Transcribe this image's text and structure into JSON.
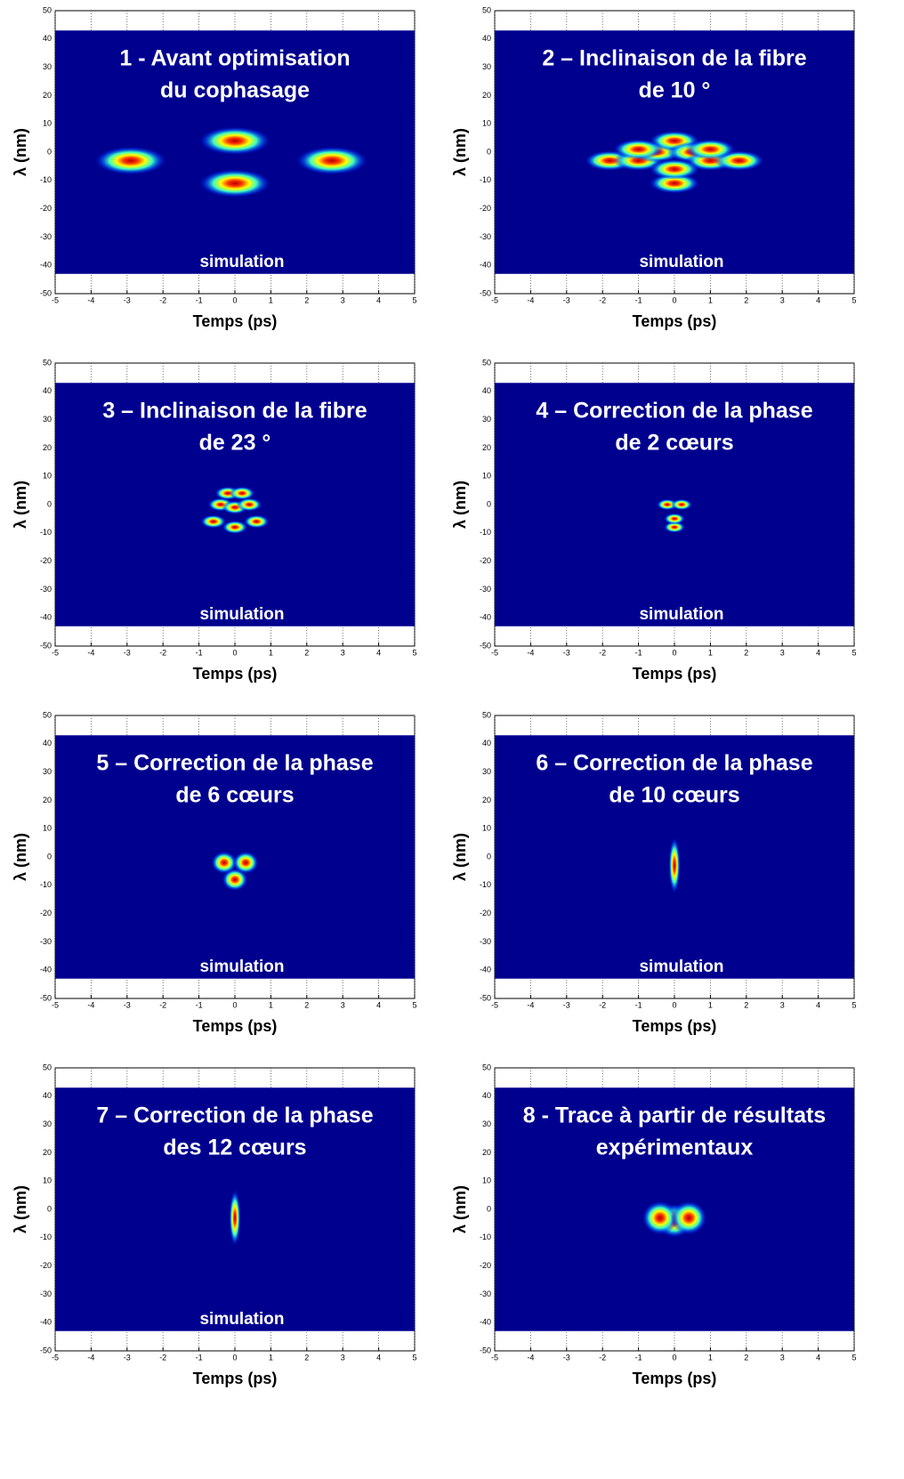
{
  "chart_data": [
    {
      "type": "heatmap",
      "title": [
        "1 - Avant optimisation",
        "du cophasage"
      ],
      "annotation": "simulation",
      "xlabel": "Temps (ps)",
      "ylabel": "λ (nm)",
      "xlim": [
        -5,
        5
      ],
      "ylim": [
        -50,
        50
      ],
      "xticks": [
        -5,
        -4,
        -3,
        -2,
        -1,
        0,
        1,
        2,
        3,
        4,
        5
      ],
      "yticks": [
        -50,
        -40,
        -30,
        -20,
        -10,
        0,
        10,
        20,
        30,
        40,
        50
      ],
      "image_ylim": [
        -43,
        43
      ],
      "color": "#00008f",
      "spot_size": [
        0.5,
        2.5
      ],
      "x": [
        -2.9,
        0,
        0,
        2.7
      ],
      "values": [
        -3,
        4,
        -11,
        -3
      ]
    },
    {
      "type": "heatmap",
      "title": [
        "2 – Inclinaison de la fibre",
        "de 10 °"
      ],
      "annotation": "simulation",
      "xlabel": "Temps (ps)",
      "ylabel": "λ (nm)",
      "xlim": [
        -5,
        5
      ],
      "ylim": [
        -50,
        50
      ],
      "xticks": [
        -5,
        -4,
        -3,
        -2,
        -1,
        0,
        1,
        2,
        3,
        4,
        5
      ],
      "yticks": [
        -50,
        -40,
        -30,
        -20,
        -10,
        0,
        10,
        20,
        30,
        40,
        50
      ],
      "image_ylim": [
        -43,
        43
      ],
      "color": "#00008f",
      "spot_size": [
        0.35,
        1.8
      ],
      "x": [
        -1.8,
        -1,
        -0.5,
        0,
        0.5,
        1,
        1.8,
        0,
        0,
        -1,
        1
      ],
      "values": [
        -3,
        -3,
        0,
        4,
        0,
        -3,
        -3,
        -11,
        -6,
        1,
        1
      ]
    },
    {
      "type": "heatmap",
      "title": [
        "3 – Inclinaison de la fibre",
        "de 23 °"
      ],
      "annotation": "simulation",
      "xlabel": "Temps (ps)",
      "ylabel": "λ (nm)",
      "xlim": [
        -5,
        5
      ],
      "ylim": [
        -50,
        50
      ],
      "xticks": [
        -5,
        -4,
        -3,
        -2,
        -1,
        0,
        1,
        2,
        3,
        4,
        5
      ],
      "yticks": [
        -50,
        -40,
        -30,
        -20,
        -10,
        0,
        10,
        20,
        30,
        40,
        50
      ],
      "image_ylim": [
        -43,
        43
      ],
      "color": "#00008f",
      "spot_size": [
        0.18,
        1.2
      ],
      "x": [
        -0.4,
        0,
        0.4,
        -0.6,
        0.6,
        0,
        -0.2,
        0.2
      ],
      "values": [
        0,
        -1,
        0,
        -6,
        -6,
        -8,
        4,
        4
      ]
    },
    {
      "type": "heatmap",
      "title": [
        "4 – Correction de la phase",
        "de 2 cœurs"
      ],
      "annotation": "simulation",
      "xlabel": "Temps (ps)",
      "ylabel": "λ (nm)",
      "xlim": [
        -5,
        5
      ],
      "ylim": [
        -50,
        50
      ],
      "xticks": [
        -5,
        -4,
        -3,
        -2,
        -1,
        0,
        1,
        2,
        3,
        4,
        5
      ],
      "yticks": [
        -50,
        -40,
        -30,
        -20,
        -10,
        0,
        10,
        20,
        30,
        40,
        50
      ],
      "image_ylim": [
        -43,
        43
      ],
      "color": "#00008f",
      "spot_size": [
        0.15,
        1
      ],
      "x": [
        0,
        -0.2,
        0.2,
        0
      ],
      "values": [
        -8,
        0,
        0,
        -5
      ]
    },
    {
      "type": "heatmap",
      "title": [
        "5 – Correction de la phase",
        "de 6 cœurs"
      ],
      "annotation": "simulation",
      "xlabel": "Temps (ps)",
      "ylabel": "λ (nm)",
      "xlim": [
        -5,
        5
      ],
      "ylim": [
        -50,
        50
      ],
      "xticks": [
        -5,
        -4,
        -3,
        -2,
        -1,
        0,
        1,
        2,
        3,
        4,
        5
      ],
      "yticks": [
        -50,
        -40,
        -30,
        -20,
        -10,
        0,
        10,
        20,
        30,
        40,
        50
      ],
      "image_ylim": [
        -43,
        43
      ],
      "color": "#00008f",
      "spot_size": [
        0.18,
        2
      ],
      "x": [
        0,
        -0.3,
        0.3
      ],
      "values": [
        -8,
        -2,
        -2
      ]
    },
    {
      "type": "heatmap",
      "title": [
        "6 – Correction de la phase",
        "de 10 cœurs"
      ],
      "annotation": "simulation",
      "xlabel": "Temps (ps)",
      "ylabel": "λ (nm)",
      "xlim": [
        -5,
        5
      ],
      "ylim": [
        -50,
        50
      ],
      "xticks": [
        -5,
        -4,
        -3,
        -2,
        -1,
        0,
        1,
        2,
        3,
        4,
        5
      ],
      "yticks": [
        -50,
        -40,
        -30,
        -20,
        -10,
        0,
        10,
        20,
        30,
        40,
        50
      ],
      "image_ylim": [
        -43,
        43
      ],
      "color": "#00008f",
      "spot_size": [
        0.08,
        5
      ],
      "x": [
        0
      ],
      "values": [
        -3
      ]
    },
    {
      "type": "heatmap",
      "title": [
        "7 – Correction de la phase",
        "des 12 cœurs"
      ],
      "annotation": "simulation",
      "xlabel": "Temps (ps)",
      "ylabel": "λ (nm)",
      "xlim": [
        -5,
        5
      ],
      "ylim": [
        -50,
        50
      ],
      "xticks": [
        -5,
        -4,
        -3,
        -2,
        -1,
        0,
        1,
        2,
        3,
        4,
        5
      ],
      "yticks": [
        -50,
        -40,
        -30,
        -20,
        -10,
        0,
        10,
        20,
        30,
        40,
        50
      ],
      "image_ylim": [
        -43,
        43
      ],
      "color": "#00008f",
      "spot_size": [
        0.08,
        5
      ],
      "x": [
        0
      ],
      "values": [
        -3
      ]
    },
    {
      "type": "heatmap",
      "title": [
        "8 - Trace à partir de résultats",
        "expérimentaux"
      ],
      "xlabel": "Temps (ps)",
      "ylabel": "λ (nm)",
      "xlim": [
        -5,
        5
      ],
      "ylim": [
        -50,
        50
      ],
      "xticks": [
        -5,
        -4,
        -3,
        -2,
        -1,
        0,
        1,
        2,
        3,
        4,
        5
      ],
      "yticks": [
        -50,
        -40,
        -30,
        -20,
        -10,
        0,
        10,
        20,
        30,
        40,
        50
      ],
      "image_ylim": [
        -43,
        43
      ],
      "color": "#00008f",
      "spot_size": [
        0.25,
        3
      ],
      "x": [
        0,
        -0.4,
        0.4
      ],
      "values": [
        -4,
        -3,
        -3
      ]
    }
  ]
}
